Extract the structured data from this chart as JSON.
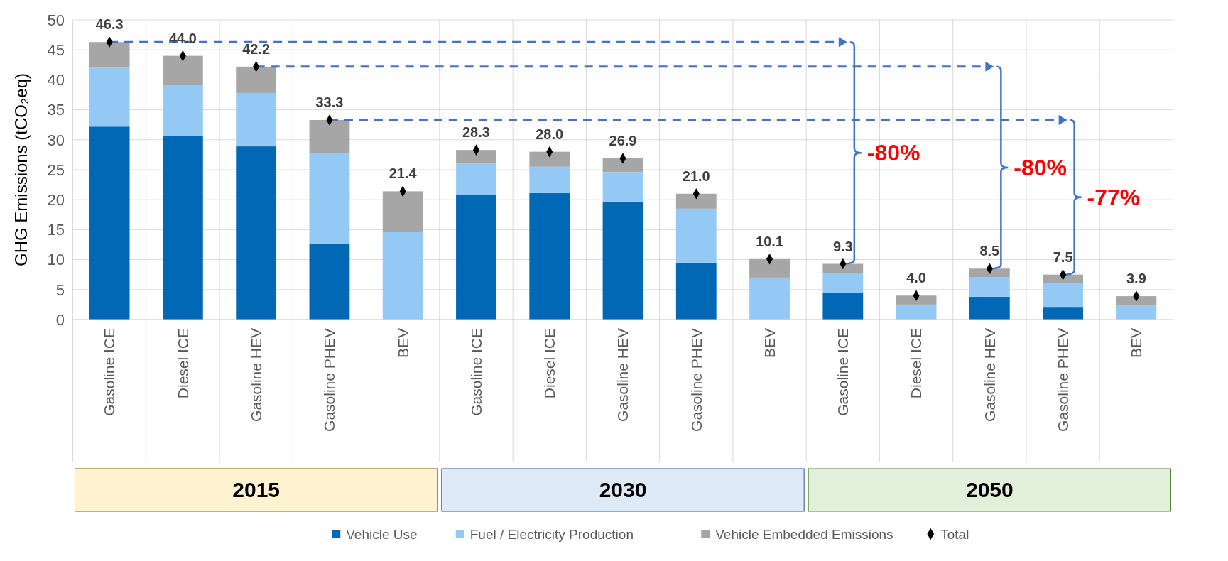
{
  "chart_data": {
    "type": "bar",
    "stacked": true,
    "ylabel": "GHG Emissions (tCO₂eq)",
    "categories": [
      "Gasoline ICE",
      "Diesel ICE",
      "Gasoline HEV",
      "Gasoline PHEV",
      "BEV",
      "Gasoline ICE",
      "Diesel ICE",
      "Gasoline HEV",
      "Gasoline PHEV",
      "BEV",
      "Gasoline ICE",
      "Diesel ICE",
      "Gasoline HEV",
      "Gasoline PHEV",
      "BEV"
    ],
    "series": [
      {
        "name": "Vehicle Use",
        "color": "#0068b5",
        "values": [
          32.2,
          30.6,
          28.9,
          12.6,
          0,
          20.9,
          21.1,
          19.7,
          9.5,
          0,
          4.4,
          0,
          3.8,
          2.0,
          0
        ]
      },
      {
        "name": "Fuel / Electricity Production",
        "color": "#95c9f5",
        "values": [
          9.8,
          8.6,
          8.9,
          15.2,
          14.6,
          5.1,
          4.4,
          4.9,
          9.0,
          7.0,
          3.4,
          2.5,
          3.3,
          4.1,
          2.3
        ]
      },
      {
        "name": "Vehicle Embedded Emissions",
        "color": "#a6a6a6",
        "values": [
          4.3,
          4.8,
          4.4,
          5.5,
          6.8,
          2.3,
          2.5,
          2.3,
          2.5,
          3.1,
          1.5,
          1.5,
          1.4,
          1.4,
          1.6
        ]
      },
      {
        "name": "Total",
        "type": "scatter",
        "color": "#000000",
        "values": [
          46.3,
          44.0,
          42.2,
          33.3,
          21.4,
          28.3,
          28.0,
          26.9,
          21.0,
          10.1,
          9.3,
          4.0,
          8.5,
          7.5,
          3.9
        ],
        "value_labels": [
          "46.3",
          "44.0",
          "42.2",
          "33.3",
          "21.4",
          "28.3",
          "28.0",
          "26.9",
          "21.0",
          "10.1",
          "9.3",
          "4.0",
          "8.5",
          "7.5",
          "3.9"
        ]
      }
    ],
    "ylim": [
      0,
      50
    ],
    "yticks": [
      0,
      5,
      10,
      15,
      20,
      25,
      30,
      35,
      40,
      45,
      50
    ],
    "grid": true,
    "legend": "bottom",
    "marker": "diamond",
    "annotations": [
      "2015",
      "2030",
      "2050",
      "-80%",
      "-80%",
      "-77%"
    ]
  }
}
